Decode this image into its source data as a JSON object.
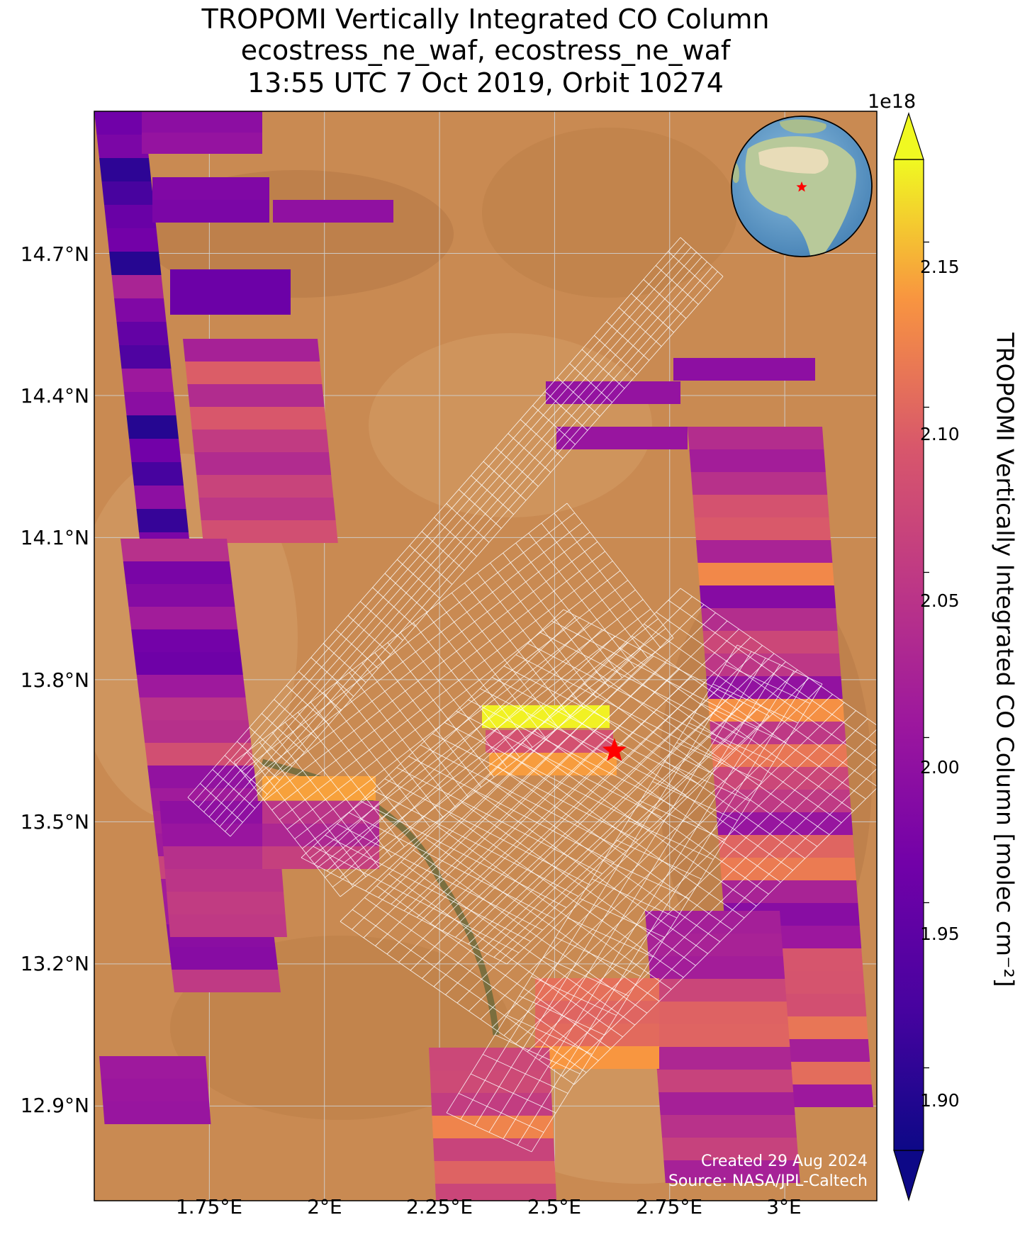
{
  "title": {
    "line1": "TROPOMI Vertically Integrated CO Column",
    "line2": "ecostress_ne_waf, ecostress_ne_waf",
    "line3": "13:55 UTC 7 Oct 2019, Orbit 10274"
  },
  "map": {
    "extent": {
      "lon_min": 1.5,
      "lon_max": 3.2,
      "lat_min": 12.7,
      "lat_max": 15.0
    },
    "lat_ticks": [
      {
        "value": 14.7,
        "label": "14.7°N"
      },
      {
        "value": 14.4,
        "label": "14.4°N"
      },
      {
        "value": 14.1,
        "label": "14.1°N"
      },
      {
        "value": 13.8,
        "label": "13.8°N"
      },
      {
        "value": 13.5,
        "label": "13.5°N"
      },
      {
        "value": 13.2,
        "label": "13.2°N"
      },
      {
        "value": 12.9,
        "label": "12.9°N"
      }
    ],
    "lon_ticks": [
      {
        "value": 1.75,
        "label": "1.75°E"
      },
      {
        "value": 2.0,
        "label": "2°E"
      },
      {
        "value": 2.25,
        "label": "2.25°E"
      },
      {
        "value": 2.5,
        "label": "2.5°E"
      },
      {
        "value": 2.75,
        "label": "2.75°E"
      },
      {
        "value": 3.0,
        "label": "3°E"
      }
    ],
    "background_colors": {
      "base": "#c98a52",
      "dark": "#a86e3f",
      "light": "#ddb07a",
      "river": "#6d6a3c"
    },
    "marker": {
      "lon": 2.63,
      "lat": 13.65,
      "color": "#ff0000",
      "icon": "star-icon"
    },
    "inset_globe": {
      "center_lon": 2.63,
      "center_lat": 13.65,
      "icon": "globe-icon",
      "marker_color": "#ff0000"
    }
  },
  "colorbar": {
    "exponent": "1e18",
    "label": "TROPOMI Vertically Integrated CO Column [molec cm⁻²]",
    "min": 1.875,
    "max": 2.175,
    "ticks": [
      {
        "value": 2.15,
        "label": "2.15"
      },
      {
        "value": 2.1,
        "label": "2.10"
      },
      {
        "value": 2.05,
        "label": "2.05"
      },
      {
        "value": 2.0,
        "label": "2.00"
      },
      {
        "value": 1.95,
        "label": "1.95"
      },
      {
        "value": 1.9,
        "label": "1.90"
      }
    ],
    "colormap": "plasma"
  },
  "credits": {
    "created": "Created 29 Aug 2024",
    "source": "Source: NASA/JPL-Caltech"
  }
}
